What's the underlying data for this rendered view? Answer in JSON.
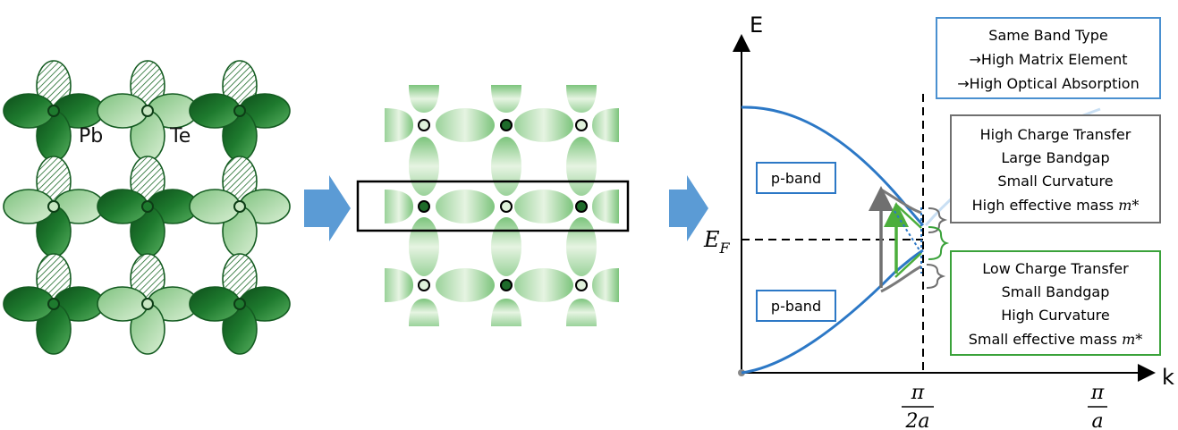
{
  "atoms": {
    "pb": "Pb",
    "te": "Te"
  },
  "plot": {
    "axis_e": "E",
    "axis_k": "k",
    "fermi": "E",
    "fermi_sub": "F",
    "tick1_num": "π",
    "tick1_den": "2a",
    "tick2_num": "π",
    "tick2_den": "a",
    "band_upper": "p-band",
    "band_lower": "p-band"
  },
  "boxes": {
    "blue": [
      "Same Band Type",
      "→High Matrix Element",
      "→High Optical Absorption"
    ],
    "gray": [
      "High Charge Transfer",
      "Large Bandgap",
      "Small Curvature",
      "High effective mass",
      "m*"
    ],
    "green": [
      "Low Charge Transfer",
      "Small Bandgap",
      "High Curvature",
      "Small effective mass",
      "m*"
    ]
  },
  "colors": {
    "dark_green": "#1e7a2e",
    "light_green": "#b5ddb0",
    "band_blue": "#2c78c6",
    "arrow_blue": "#5b9bd5",
    "box_blue": "#4a90d0",
    "box_gray": "#707070",
    "box_green": "#3aa23a"
  }
}
